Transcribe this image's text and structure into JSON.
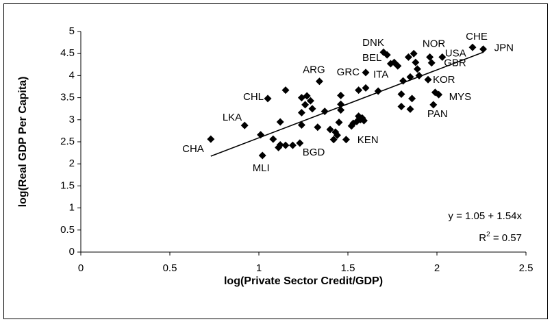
{
  "chart_data": {
    "type": "scatter",
    "x_label": "log(Private Sector Credit/GDP)",
    "y_label": "log(Real GDP Per Capita)",
    "xlim": [
      0,
      2.5
    ],
    "xticks": [
      0,
      0.5,
      1,
      1.5,
      2,
      2.5
    ],
    "ylim": [
      0,
      5
    ],
    "yticks": [
      0,
      0.5,
      1,
      1.5,
      2,
      2.5,
      3,
      3.5,
      4,
      4.5,
      5
    ],
    "color": "#000000",
    "x": [
      0.73,
      0.92,
      1.02,
      1.01,
      1.05,
      1.08,
      1.11,
      1.12,
      1.12,
      1.15,
      1.15,
      1.19,
      1.23,
      1.24,
      1.24,
      1.24,
      1.26,
      1.27,
      1.29,
      1.3,
      1.34,
      1.33,
      1.37,
      1.4,
      1.42,
      1.43,
      1.44,
      1.45,
      1.46,
      1.46,
      1.46,
      1.49,
      1.52,
      1.53,
      1.55,
      1.56,
      1.57,
      1.58,
      1.59,
      1.56,
      1.6,
      1.6,
      1.67,
      1.7,
      1.72,
      1.74,
      1.76,
      1.78,
      1.8,
      1.8,
      1.81,
      1.84,
      1.85,
      1.85,
      1.86,
      1.87,
      1.88,
      1.89,
      1.9,
      1.95,
      1.96,
      1.97,
      1.98,
      1.99,
      2.03,
      2.01,
      2.2,
      2.26
    ],
    "y": [
      2.56,
      2.87,
      2.19,
      2.66,
      3.48,
      2.56,
      2.37,
      2.43,
      2.95,
      3.67,
      2.42,
      2.42,
      2.47,
      2.88,
      3.16,
      3.5,
      3.34,
      3.54,
      3.43,
      3.25,
      3.87,
      2.83,
      3.19,
      2.78,
      2.55,
      2.72,
      2.65,
      2.94,
      3.35,
      3.55,
      3.22,
      2.55,
      2.86,
      2.92,
      2.96,
      3.08,
      3.0,
      3.04,
      2.98,
      3.67,
      3.72,
      4.07,
      3.65,
      4.53,
      4.47,
      4.27,
      4.3,
      4.22,
      3.58,
      3.3,
      3.88,
      4.42,
      3.97,
      3.24,
      3.48,
      4.5,
      4.3,
      4.15,
      4.0,
      3.91,
      4.42,
      4.29,
      3.34,
      3.62,
      4.42,
      3.57,
      4.64,
      4.6
    ],
    "labels": [
      "CHA",
      "LKA",
      "MLI",
      null,
      "CHL",
      null,
      null,
      null,
      null,
      null,
      null,
      null,
      "BGD",
      null,
      null,
      null,
      null,
      null,
      null,
      null,
      "ARG",
      null,
      null,
      null,
      null,
      null,
      null,
      null,
      null,
      null,
      null,
      null,
      null,
      null,
      null,
      null,
      null,
      "KEN",
      null,
      null,
      "ITA",
      "GRC",
      null,
      "DNK",
      null,
      "BEL",
      null,
      null,
      null,
      null,
      null,
      null,
      null,
      null,
      null,
      null,
      null,
      null,
      null,
      "KOR",
      "NOR",
      "GBR",
      "PAN",
      null,
      "USA",
      "MYS",
      "CHE",
      "JPN"
    ],
    "trendline": {
      "intercept": 1.05,
      "slope": 1.54
    },
    "equation": "y = 1.05 + 1.54x",
    "r_squared": {
      "symbol": "R",
      "exponent": "2",
      "text": " = 0.57"
    }
  }
}
